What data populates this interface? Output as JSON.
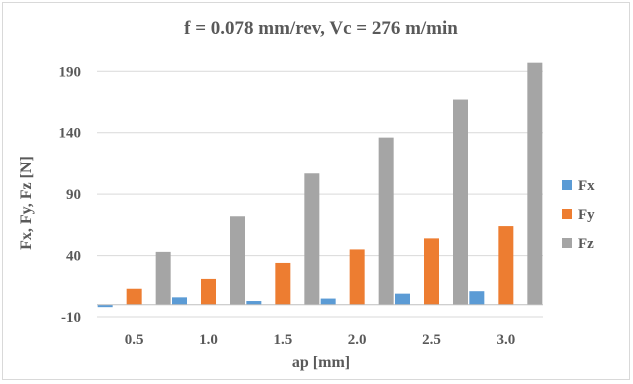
{
  "chart_data": {
    "type": "bar",
    "title": "f = 0.078 mm/rev, Vc = 276 m/min",
    "xlabel": "ap [mm]",
    "ylabel": "Fx, Fy, Fz [N]",
    "categories": [
      "0.5",
      "1.0",
      "1.5",
      "2.0",
      "2.5",
      "3.0"
    ],
    "series": [
      {
        "name": "Fx",
        "color": "#5b9bd5",
        "values": [
          -2,
          6,
          3,
          5,
          9,
          11
        ]
      },
      {
        "name": "Fy",
        "color": "#ed7d31",
        "values": [
          13,
          21,
          34,
          45,
          54,
          64
        ]
      },
      {
        "name": "Fz",
        "color": "#a5a5a5",
        "values": [
          43,
          72,
          107,
          136,
          167,
          197
        ]
      }
    ],
    "ylim": [
      -10,
      200
    ],
    "yticks": [
      "-10",
      "40",
      "90",
      "140",
      "190"
    ],
    "grid": true,
    "legend_position": "right"
  }
}
